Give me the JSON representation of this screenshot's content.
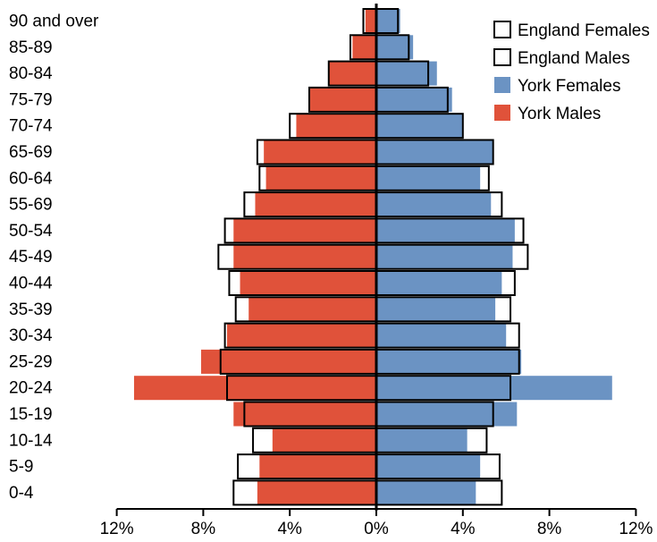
{
  "chart_data": {
    "type": "bar",
    "orientation": "horizontal-population-pyramid",
    "categories": [
      "90 and over",
      "85-89",
      "80-84",
      "75-79",
      "70-74",
      "65-69",
      "60-64",
      "55-69",
      "50-54",
      "45-49",
      "40-44",
      "35-39",
      "30-34",
      "25-29",
      "20-24",
      "15-19",
      "10-14",
      "5-9",
      "0-4"
    ],
    "series": [
      {
        "name": "England Females",
        "side": "right",
        "style": "outline",
        "values": [
          1.0,
          1.5,
          2.4,
          3.3,
          4.0,
          5.4,
          5.2,
          5.8,
          6.8,
          7.0,
          6.4,
          6.2,
          6.6,
          6.6,
          6.2,
          5.4,
          5.1,
          5.7,
          5.8
        ]
      },
      {
        "name": "England Males",
        "side": "left",
        "style": "outline",
        "values": [
          0.6,
          1.2,
          2.2,
          3.1,
          4.0,
          5.5,
          5.4,
          6.1,
          7.0,
          7.3,
          6.8,
          6.5,
          7.0,
          7.2,
          6.9,
          6.1,
          5.7,
          6.4,
          6.6
        ]
      },
      {
        "name": "York Females",
        "side": "right",
        "style": "filled",
        "color": "#6b93c3",
        "values": [
          1.1,
          1.7,
          2.8,
          3.5,
          4.0,
          5.4,
          4.8,
          5.3,
          6.4,
          6.3,
          5.8,
          5.5,
          6.0,
          6.7,
          10.9,
          6.5,
          4.2,
          4.8,
          4.6
        ]
      },
      {
        "name": "York Males",
        "side": "left",
        "style": "filled",
        "color": "#e0523a",
        "values": [
          0.5,
          1.1,
          2.2,
          3.1,
          3.7,
          5.2,
          5.1,
          5.6,
          6.6,
          6.6,
          6.3,
          5.9,
          6.9,
          8.1,
          11.2,
          6.6,
          4.8,
          5.4,
          5.5
        ]
      }
    ],
    "x_ticks": [
      "12%",
      "8%",
      "4%",
      "0%",
      "4%",
      "8%",
      "12%"
    ],
    "xlim": [
      -12,
      12
    ],
    "legend_position": "top-right",
    "grid": false
  }
}
